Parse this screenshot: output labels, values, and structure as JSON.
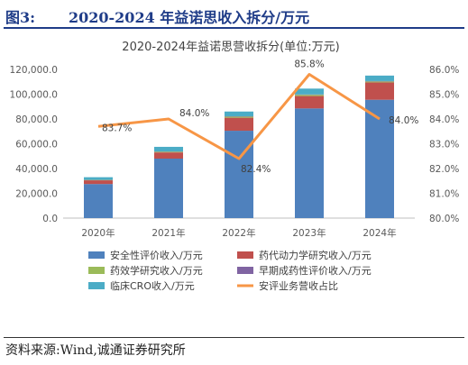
{
  "figure": {
    "label": "图3:",
    "title": "2020-2024 年益诺思收入拆分/万元",
    "source": "资料来源:Wind,诚通证券研究所"
  },
  "chart_data": {
    "type": "bar",
    "title": "2020-2024年益诺思营收拆分(单位:万元)",
    "categories": [
      "2020年",
      "2021年",
      "2022年",
      "2023年",
      "2024年"
    ],
    "stacked": true,
    "y_left": {
      "min": 0,
      "max": 120000,
      "ticks": [
        "0.0",
        "20,000.0",
        "40,000.0",
        "60,000.0",
        "80,000.0",
        "100,000.0",
        "120,000.0"
      ]
    },
    "y_right": {
      "min": 80.0,
      "max": 86.0,
      "ticks": [
        "80.0%",
        "81.0%",
        "82.0%",
        "83.0%",
        "84.0%",
        "85.0%",
        "86.0%"
      ]
    },
    "series": [
      {
        "name": "安全性评价收入/万元",
        "color": "#4f81bd",
        "values": [
          27500,
          48000,
          70500,
          88500,
          95500
        ]
      },
      {
        "name": "药代动力学研究收入/万元",
        "color": "#c0504d",
        "values": [
          3000,
          5000,
          10500,
          10000,
          14000
        ]
      },
      {
        "name": "药效学研究收入/万元",
        "color": "#9bbb59",
        "values": [
          300,
          600,
          900,
          1000,
          800
        ]
      },
      {
        "name": "早期成药性评价收入/万元",
        "color": "#8064a2",
        "values": [
          100,
          200,
          300,
          300,
          300
        ]
      },
      {
        "name": "临床CRO收入/万元",
        "color": "#4bacc6",
        "values": [
          2100,
          3700,
          3800,
          4700,
          4400
        ]
      }
    ],
    "line": {
      "name": "安评业务营收占比",
      "color": "#f79646",
      "values": [
        83.7,
        84.0,
        82.4,
        85.8,
        84.0
      ],
      "labels": [
        "83.7%",
        "84.0%",
        "82.4%",
        "85.8%",
        "84.0%"
      ]
    },
    "legend_position": "bottom",
    "grid": false
  }
}
